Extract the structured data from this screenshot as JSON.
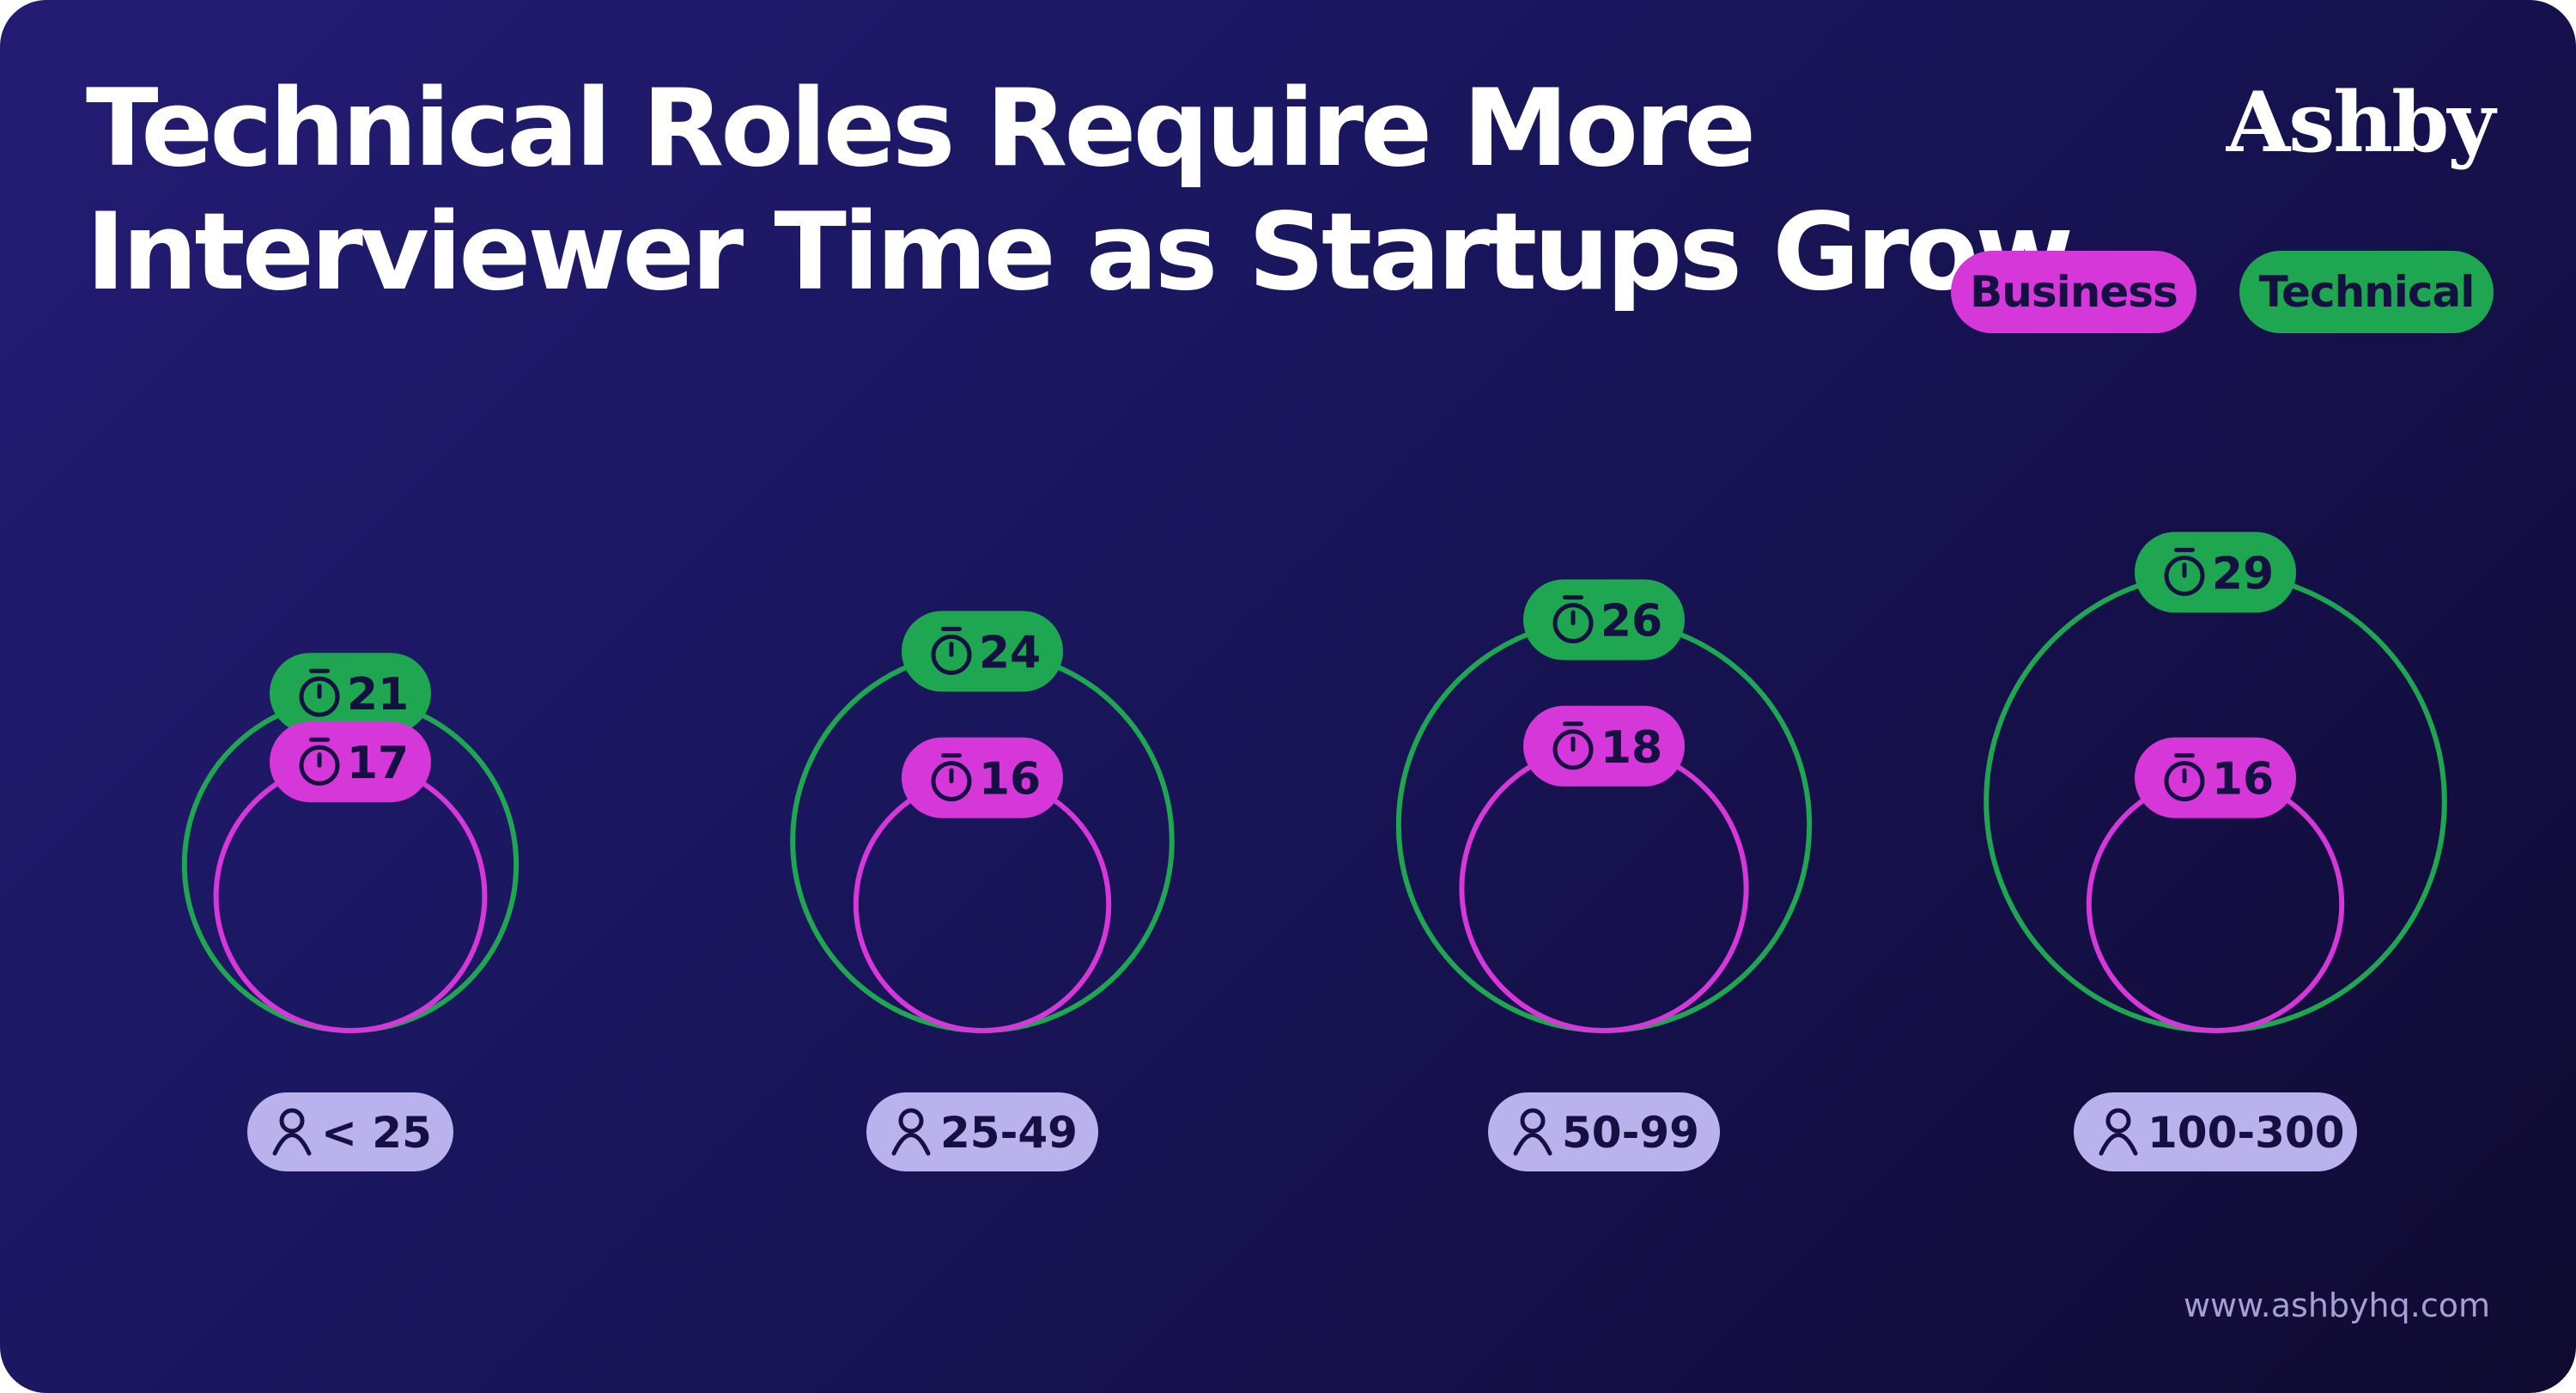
{
  "logo": "Ashby",
  "footer_url": "www.ashbyhq.com",
  "colors": {
    "business": "#d637d9",
    "technical": "#1fa650",
    "size_pill": "#b9b2ec",
    "label_text": "#141042"
  },
  "icons": {
    "time": "stopwatch-icon",
    "size": "person-icon"
  },
  "chart_data": {
    "type": "bubble",
    "title_lines": [
      "Technical Roles Require More",
      "Interviewer Time as Startups Grow"
    ],
    "legend": [
      "Business",
      "Technical"
    ],
    "legend_placement": "top-right",
    "categories": [
      "< 25",
      "25-49",
      "50-99",
      "100-300"
    ],
    "series": [
      {
        "name": "Business",
        "values": [
          17,
          16,
          18,
          16
        ]
      },
      {
        "name": "Technical",
        "values": [
          21,
          24,
          26,
          29
        ]
      }
    ]
  }
}
